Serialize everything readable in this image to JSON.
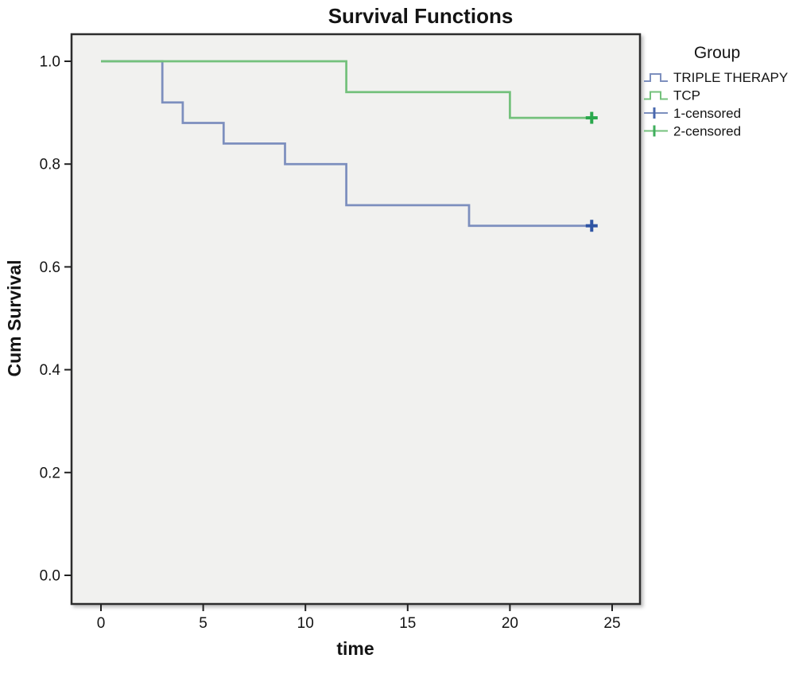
{
  "chart_data": {
    "type": "line",
    "subtype": "kaplan-meier-step-survival",
    "title": "Survival Functions",
    "xlabel": "time",
    "ylabel": "Cum Survival",
    "xlim": [
      0,
      25
    ],
    "ylim": [
      0.0,
      1.0
    ],
    "xticks": [
      "0",
      "5",
      "10",
      "15",
      "20",
      "25"
    ],
    "yticks": [
      "0.0",
      "0.2",
      "0.4",
      "0.6",
      "0.8",
      "1.0"
    ],
    "grid": false,
    "plot_bg": "#f1f1ef",
    "frame_color": "#2d2d2d",
    "legend": {
      "title": "Group",
      "position": "right",
      "entries": [
        {
          "label": "TRIPLE THERAPY",
          "glyph": "step-line-icon",
          "color": "#7d8fbe"
        },
        {
          "label": "TCP",
          "glyph": "step-line-icon",
          "color": "#74c17c"
        },
        {
          "label": "1-censored",
          "glyph": "plus-line-icon",
          "color": "#7d8fbe",
          "plus_color": "#4a68ae"
        },
        {
          "label": "2-censored",
          "glyph": "plus-line-icon",
          "color": "#74c17c",
          "plus_color": "#3fae5c"
        }
      ]
    },
    "series": [
      {
        "name": "TRIPLE THERAPY",
        "color": "#7d8fbe",
        "censor_color": "#2f55a4",
        "steps": [
          [
            0,
            1.0
          ],
          [
            3,
            0.92
          ],
          [
            4,
            0.88
          ],
          [
            6,
            0.84
          ],
          [
            9,
            0.8
          ],
          [
            12,
            0.72
          ],
          [
            18,
            0.68
          ],
          [
            24,
            0.68
          ]
        ],
        "censored": [
          [
            24,
            0.68
          ]
        ]
      },
      {
        "name": "TCP",
        "color": "#74c17c",
        "censor_color": "#2aa84c",
        "steps": [
          [
            0,
            1.0
          ],
          [
            12,
            0.94
          ],
          [
            20,
            0.89
          ],
          [
            24,
            0.89
          ]
        ],
        "censored": [
          [
            24,
            0.89
          ]
        ]
      }
    ]
  }
}
